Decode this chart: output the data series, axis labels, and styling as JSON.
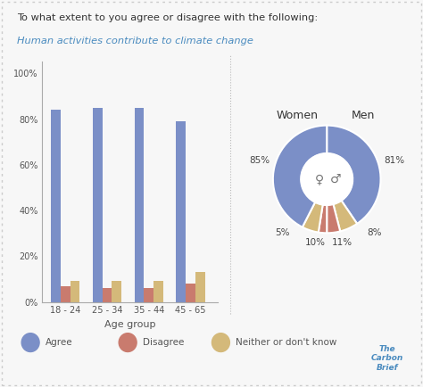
{
  "title_line1": "To what extent to you agree or disagree with the following:",
  "title_line2": "Human activities contribute to climate change",
  "title_line2_color": "#4a8bbf",
  "background_color": "#f7f7f7",
  "bar_categories": [
    "18 - 24",
    "25 - 34",
    "35 - 44",
    "45 - 65"
  ],
  "bar_agree": [
    84,
    85,
    85,
    79
  ],
  "bar_disagree": [
    7,
    6,
    6,
    8
  ],
  "bar_neither": [
    9,
    9,
    9,
    13
  ],
  "bar_color_agree": "#7b8fc7",
  "bar_color_disagree": "#c97b6e",
  "bar_color_neither": "#d4b97a",
  "bar_xlabel": "Age group",
  "pie_color_agree": "#7b8fc7",
  "pie_color_disagree": "#c97b6e",
  "pie_color_neither": "#d4b97a",
  "legend_labels": [
    "Agree",
    "Disagree",
    "Neither or don't know"
  ],
  "carbon_brief_text": "The\nCarbon\nBrief"
}
